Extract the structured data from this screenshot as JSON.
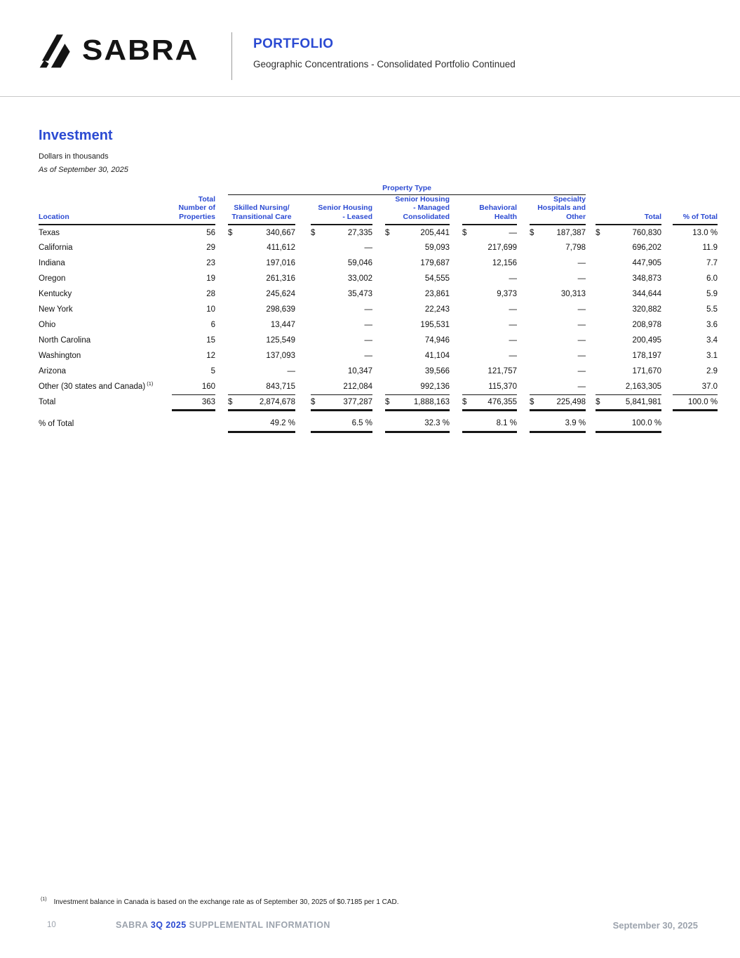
{
  "header": {
    "brand": "SABRA",
    "section_title": "PORTFOLIO",
    "section_subtitle": "Geographic Concentrations - Consolidated Portfolio Continued"
  },
  "main": {
    "title": "Investment",
    "dollars_note": "Dollars in thousands",
    "as_of_note": "As of September 30, 2025"
  },
  "table": {
    "group_header": "Property Type",
    "columns": [
      [
        "Location"
      ],
      [
        "Total",
        "Number of",
        "Properties"
      ],
      [
        "Skilled Nursing/",
        "Transitional Care"
      ],
      [
        "Senior Housing",
        "- Leased"
      ],
      [
        "Senior Housing",
        "- Managed",
        "Consolidated"
      ],
      [
        "Behavioral",
        "Health"
      ],
      [
        "Specialty",
        "Hospitals and",
        "Other"
      ],
      [
        "Total"
      ],
      [
        "% of Total"
      ]
    ],
    "rows": [
      {
        "location": "Texas",
        "props": "56",
        "dollar": true,
        "values": [
          "340,667",
          "27,335",
          "205,441",
          "—",
          "187,387",
          "760,830"
        ],
        "pct": "13.0 %"
      },
      {
        "location": "California",
        "props": "29",
        "values": [
          "411,612",
          "—",
          "59,093",
          "217,699",
          "7,798",
          "696,202"
        ],
        "pct": "11.9"
      },
      {
        "location": "Indiana",
        "props": "23",
        "values": [
          "197,016",
          "59,046",
          "179,687",
          "12,156",
          "—",
          "447,905"
        ],
        "pct": "7.7"
      },
      {
        "location": "Oregon",
        "props": "19",
        "values": [
          "261,316",
          "33,002",
          "54,555",
          "—",
          "—",
          "348,873"
        ],
        "pct": "6.0"
      },
      {
        "location": "Kentucky",
        "props": "28",
        "values": [
          "245,624",
          "35,473",
          "23,861",
          "9,373",
          "30,313",
          "344,644"
        ],
        "pct": "5.9"
      },
      {
        "location": "New York",
        "props": "10",
        "values": [
          "298,639",
          "—",
          "22,243",
          "—",
          "—",
          "320,882"
        ],
        "pct": "5.5"
      },
      {
        "location": "Ohio",
        "props": "6",
        "values": [
          "13,447",
          "—",
          "195,531",
          "—",
          "—",
          "208,978"
        ],
        "pct": "3.6"
      },
      {
        "location": "North Carolina",
        "props": "15",
        "values": [
          "125,549",
          "—",
          "74,946",
          "—",
          "—",
          "200,495"
        ],
        "pct": "3.4"
      },
      {
        "location": "Washington",
        "props": "12",
        "values": [
          "137,093",
          "—",
          "41,104",
          "—",
          "—",
          "178,197"
        ],
        "pct": "3.1"
      },
      {
        "location": "Arizona",
        "props": "5",
        "values": [
          "—",
          "10,347",
          "39,566",
          "121,757",
          "—",
          "171,670"
        ],
        "pct": "2.9"
      },
      {
        "location": "Other (30 states and Canada)",
        "location_sup": "(1)",
        "props": "160",
        "values": [
          "843,715",
          "212,084",
          "992,136",
          "115,370",
          "—",
          "2,163,305"
        ],
        "pct": "37.0"
      }
    ],
    "total_row": {
      "label": "Total",
      "props": "363",
      "dollar": true,
      "values": [
        "2,874,678",
        "377,287",
        "1,888,163",
        "476,355",
        "225,498",
        "5,841,981"
      ],
      "pct": "100.0 %"
    },
    "pct_row": {
      "label": "% of Total",
      "values": [
        "49.2 %",
        "6.5 %",
        "32.3 %",
        "8.1 %",
        "3.9 %",
        "100.0 %"
      ]
    }
  },
  "footnote": {
    "sup": "(1)",
    "text": "Investment balance in Canada is based on the exchange rate as of September 30, 2025 of $0.7185 per 1 CAD."
  },
  "footer": {
    "page": "10",
    "brand": "SABRA",
    "quarter": "3Q 2025",
    "label": "SUPPLEMENTAL INFORMATION",
    "date": "September 30, 2025"
  }
}
